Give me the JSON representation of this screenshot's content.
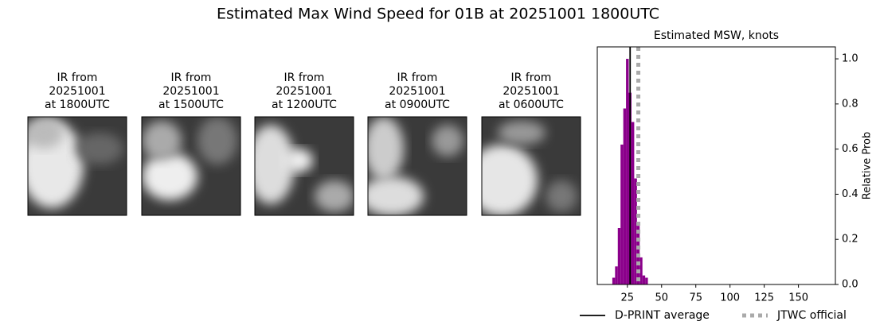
{
  "title": "Estimated Max Wind Speed for 01B at 20251001 1800UTC",
  "panels": [
    {
      "lines": [
        "IR from",
        "20251001",
        "at 1800UTC"
      ]
    },
    {
      "lines": [
        "IR from",
        "20251001",
        "at 1500UTC"
      ]
    },
    {
      "lines": [
        "IR from",
        "20251001",
        "at 1200UTC"
      ]
    },
    {
      "lines": [
        "IR from",
        "20251001",
        "at 0900UTC"
      ]
    },
    {
      "lines": [
        "IR from",
        "20251001",
        "at 0600UTC"
      ]
    }
  ],
  "chart_data": {
    "type": "histogram",
    "title": "Estimated MSW, knots",
    "y_label": "Relative Prob",
    "color": "#8b008b",
    "bins": [
      14,
      16,
      18,
      20,
      22,
      24,
      26,
      28,
      30,
      32,
      34,
      36,
      38,
      40
    ],
    "values": [
      0.03,
      0.08,
      0.25,
      0.62,
      0.78,
      1.0,
      0.85,
      0.72,
      0.47,
      0.26,
      0.12,
      0.04,
      0.03
    ],
    "xlim": [
      3,
      177
    ],
    "xticks": [
      25,
      50,
      75,
      100,
      125,
      150
    ],
    "ylim": [
      0,
      1.053
    ],
    "yticks": [
      {
        "value": 0,
        "label": "0.0"
      },
      {
        "value": 0.2,
        "label": "0.2"
      },
      {
        "value": 0.4,
        "label": "0.4"
      },
      {
        "value": 0.6,
        "label": "0.6"
      },
      {
        "value": 0.8,
        "label": "0.8"
      },
      {
        "value": 1.0,
        "label": "1.0"
      }
    ],
    "reference_lines": [
      {
        "name": "D-PRINT average",
        "value": 27,
        "color": "#000000",
        "style": "solid"
      },
      {
        "name": "JTWC official",
        "value": 33,
        "color": "#aaaaaa",
        "style": "dotted"
      }
    ]
  }
}
